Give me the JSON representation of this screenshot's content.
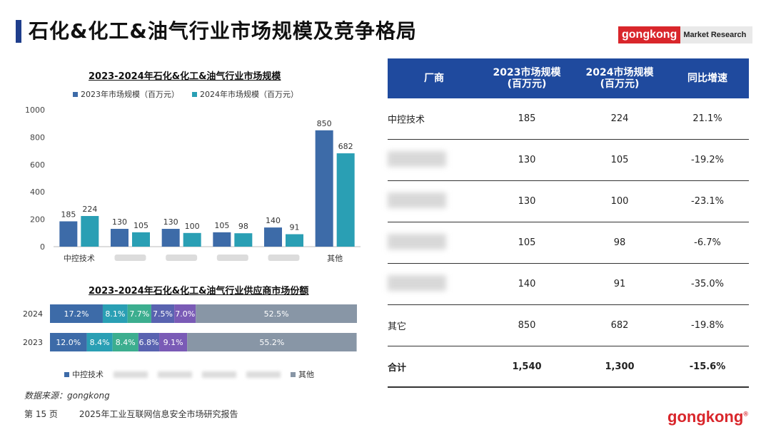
{
  "page_title": "石化&化工&油气行业市场规模及竞争格局",
  "brand": {
    "red": "gongkong",
    "text": "Market Research"
  },
  "colors": {
    "series_2023": "#3d6ba8",
    "series_2024": "#2a9fb4",
    "others": "#8896a6"
  },
  "chart_data": [
    {
      "type": "bar",
      "title": "2023-2024年石化&化工&油气行业市场规模",
      "categories": [
        "中控技术",
        "",
        "",
        "",
        "",
        "其他"
      ],
      "series": [
        {
          "name": "2023年市场规模（百万元）",
          "values": [
            185,
            130,
            130,
            105,
            140,
            850
          ]
        },
        {
          "name": "2024年市场规模（百万元）",
          "values": [
            224,
            105,
            100,
            98,
            91,
            682
          ]
        }
      ],
      "yticks": [
        "0",
        "200",
        "400",
        "600",
        "800",
        "1000"
      ],
      "ylim": [
        0,
        1000
      ],
      "legend": "top"
    },
    {
      "type": "bar",
      "orientation": "horizontal-stacked",
      "title": "2023-2024年石化&化工&油气行业供应商市场份额",
      "categories": [
        "2024",
        "2023"
      ],
      "segments": [
        {
          "name": "中控技术",
          "values": [
            17.2,
            12.0
          ],
          "labels": [
            "17.2%",
            "12.0%"
          ]
        },
        {
          "name": "",
          "values": [
            8.1,
            8.4
          ],
          "labels": [
            "8.1%",
            "8.4%"
          ]
        },
        {
          "name": "",
          "values": [
            7.7,
            8.4
          ],
          "labels": [
            "7.7%",
            "8.4%"
          ]
        },
        {
          "name": "",
          "values": [
            7.5,
            6.8
          ],
          "labels": [
            "7.5%",
            "6.8%"
          ]
        },
        {
          "name": "",
          "values": [
            7.0,
            9.1
          ],
          "labels": [
            "7.0%",
            "9.1%"
          ]
        },
        {
          "name": "其他",
          "values": [
            52.5,
            55.2
          ],
          "labels": [
            "52.5%",
            "55.2%"
          ]
        }
      ],
      "segment_colors": [
        "#3d6ba8",
        "#2a9fb4",
        "#3cae8f",
        "#5963b0",
        "#7a5bb6",
        "#8896a6"
      ],
      "legend": "bottom"
    }
  ],
  "table": {
    "headers": [
      "厂商",
      "2023市场规模\n(百万元)",
      "2024市场规模\n(百万元)",
      "同比增速"
    ],
    "rows": [
      [
        "中控技术",
        "185",
        "224",
        "21.1%"
      ],
      [
        "",
        "130",
        "105",
        "-19.2%"
      ],
      [
        "",
        "130",
        "100",
        "-23.1%"
      ],
      [
        "",
        "105",
        "98",
        "-6.7%"
      ],
      [
        "",
        "140",
        "91",
        "-35.0%"
      ],
      [
        "其它",
        "850",
        "682",
        "-19.8%"
      ],
      [
        "合计",
        "1,540",
        "1,300",
        "-15.6%"
      ]
    ]
  },
  "source": "数据来源：gongkong",
  "footer": {
    "page": "第 15 页",
    "report": "2025年工业互联网信息安全市场研究报告"
  },
  "logo_bottom": "gongkong",
  "logo_bottom_mark": "®"
}
